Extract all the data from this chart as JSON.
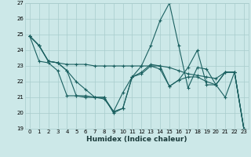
{
  "xlabel": "Humidex (Indice chaleur)",
  "bg_color": "#cce8e8",
  "grid_color": "#a8cccc",
  "line_color": "#1a6060",
  "markersize": 3,
  "linewidth": 0.8,
  "xlim_min": -0.5,
  "xlim_max": 23.5,
  "ylim_min": 19,
  "ylim_max": 27,
  "yticks": [
    19,
    20,
    21,
    22,
    23,
    24,
    25,
    26,
    27
  ],
  "xticks": [
    0,
    1,
    2,
    3,
    4,
    5,
    6,
    7,
    8,
    9,
    10,
    11,
    12,
    13,
    14,
    15,
    16,
    17,
    18,
    19,
    20,
    21,
    22,
    23
  ],
  "xlabel_fontsize": 6.5,
  "tick_fontsize": 5.0,
  "series": [
    [
      24.9,
      24.3,
      23.3,
      23.2,
      22.7,
      21.1,
      21.0,
      21.0,
      21.0,
      20.1,
      20.3,
      22.3,
      23.0,
      24.3,
      25.9,
      27.0,
      24.3,
      21.6,
      22.9,
      22.8,
      21.8,
      21.0,
      22.6,
      19.0
    ],
    [
      24.9,
      24.3,
      23.3,
      23.2,
      23.1,
      23.1,
      23.1,
      23.0,
      23.0,
      23.0,
      23.0,
      23.0,
      23.0,
      23.0,
      23.0,
      22.9,
      22.7,
      22.5,
      22.4,
      22.3,
      22.2,
      22.6,
      22.6,
      19.0
    ],
    [
      24.9,
      24.3,
      23.3,
      23.2,
      22.7,
      22.0,
      21.5,
      21.0,
      20.9,
      20.1,
      21.3,
      22.3,
      22.5,
      23.0,
      22.8,
      21.7,
      22.1,
      22.3,
      22.3,
      22.0,
      21.8,
      22.6,
      22.6,
      19.0
    ],
    [
      24.9,
      23.3,
      23.2,
      22.7,
      21.1,
      21.1,
      21.1,
      21.0,
      21.0,
      20.0,
      20.3,
      22.3,
      22.6,
      23.1,
      23.0,
      21.7,
      22.1,
      22.9,
      24.0,
      21.8,
      21.8,
      22.6,
      22.6,
      19.0
    ]
  ]
}
